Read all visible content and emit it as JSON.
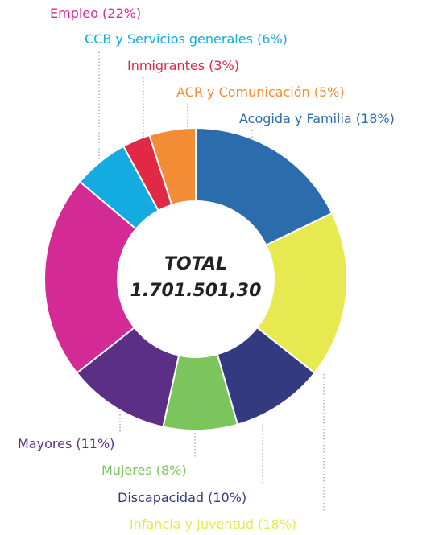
{
  "chart_data": {
    "type": "pie",
    "variant": "donut",
    "center_text": [
      "TOTAL",
      "1.701.501,30"
    ],
    "slices": [
      {
        "label": "Acogida y Familia (18%)",
        "value": 18,
        "color": "#2b6cad"
      },
      {
        "label": "Infancia y Juventud (18%)",
        "value": 18,
        "color": "#e7e951"
      },
      {
        "label": "Discapacidad (10%)",
        "value": 10,
        "color": "#333a80"
      },
      {
        "label": "Mujeres (8%)",
        "value": 8,
        "color": "#7cc55c"
      },
      {
        "label": "Mayores (11%)",
        "value": 11,
        "color": "#5b2f86"
      },
      {
        "label": "Empleo (22%)",
        "value": 22,
        "color": "#d42a95"
      },
      {
        "label": "CCB y Servicios generales (6%)",
        "value": 6,
        "color": "#13abe0"
      },
      {
        "label": "Inmigrantes (3%)",
        "value": 3,
        "color": "#e12945"
      },
      {
        "label": "ACR y Comunicación (5%)",
        "value": 5,
        "color": "#f38d35"
      }
    ]
  }
}
